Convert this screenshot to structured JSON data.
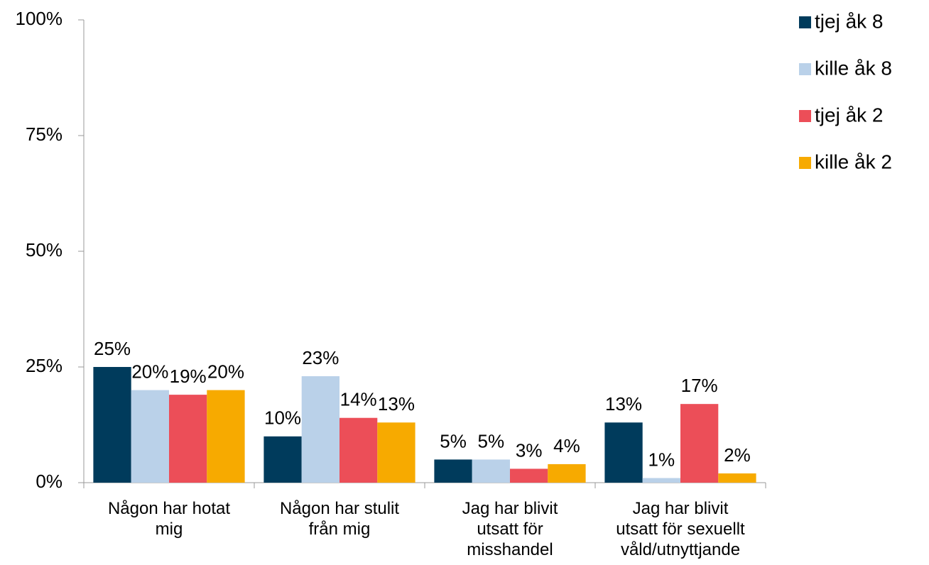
{
  "chart_data": {
    "type": "bar",
    "categories": [
      "Någon har hotat mig",
      "Någon har stulit från mig",
      "Jag har blivit utsatt för misshandel",
      "Jag har blivit utsatt för sexuellt våld/utnyttjande"
    ],
    "series": [
      {
        "name": "tjej åk 8",
        "color": "#003b5c",
        "values": [
          25,
          10,
          5,
          13
        ],
        "value_labels": [
          "25%",
          "10%",
          "5%",
          "13%"
        ]
      },
      {
        "name": "kille åk 8",
        "color": "#bad1e9",
        "values": [
          20,
          23,
          5,
          1
        ],
        "value_labels": [
          "20%",
          "23%",
          "5%",
          "1%"
        ]
      },
      {
        "name": "tjej åk 2",
        "color": "#ec4e58",
        "values": [
          19,
          14,
          3,
          17
        ],
        "value_labels": [
          "19%",
          "14%",
          "3%",
          "17%"
        ]
      },
      {
        "name": "kille åk 2",
        "color": "#f7aa00",
        "values": [
          20,
          13,
          4,
          2
        ],
        "value_labels": [
          "20%",
          "13%",
          "4%",
          "2%"
        ]
      }
    ],
    "ylim": [
      0,
      100
    ],
    "yticks": [
      {
        "value": 0,
        "label": "0%"
      },
      {
        "value": 25,
        "label": "25%"
      },
      {
        "value": 50,
        "label": "50%"
      },
      {
        "value": 75,
        "label": "75%"
      },
      {
        "value": 100,
        "label": "100%"
      }
    ],
    "legend": "right"
  }
}
